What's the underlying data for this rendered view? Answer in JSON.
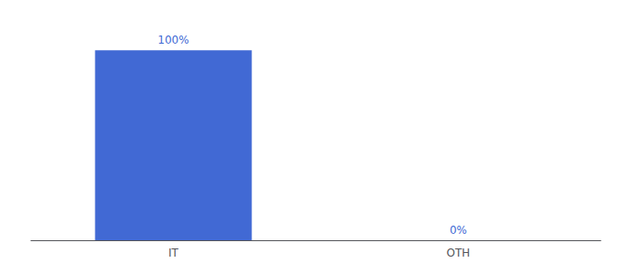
{
  "chart_data": {
    "type": "bar",
    "categories": [
      "IT",
      "OTH"
    ],
    "values": [
      100,
      0
    ],
    "value_labels": [
      "100%",
      "0%"
    ],
    "data_labels": true,
    "color": "#4169d4",
    "ylim": [
      0,
      115
    ],
    "grid": false,
    "tick_labels": "x"
  }
}
